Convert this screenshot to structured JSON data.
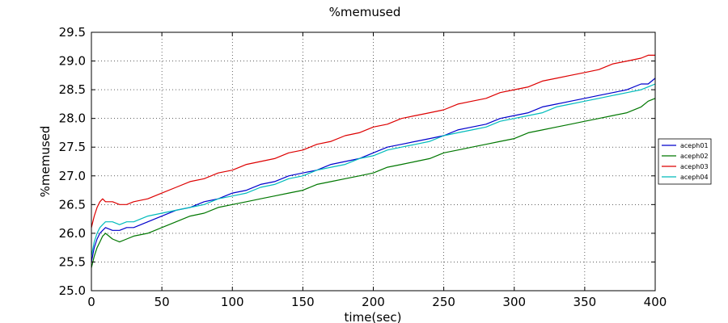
{
  "chart_data": {
    "type": "line",
    "title": "%memused",
    "xlabel": "time(sec)",
    "ylabel": "%memused",
    "xlim": [
      0,
      400
    ],
    "ylim": [
      25.0,
      29.5
    ],
    "xticks": [
      0,
      50,
      100,
      150,
      200,
      250,
      300,
      350,
      400
    ],
    "xtick_labels": [
      "0",
      "50",
      "100",
      "150",
      "200",
      "250",
      "300",
      "350",
      "400"
    ],
    "yticks": [
      25.0,
      25.5,
      26.0,
      26.5,
      27.0,
      27.5,
      28.0,
      28.5,
      29.0,
      29.5
    ],
    "ytick_labels": [
      "25.0",
      "25.5",
      "26.0",
      "26.5",
      "27.0",
      "27.5",
      "28.0",
      "28.5",
      "29.0",
      "29.5"
    ],
    "grid": true,
    "legend_position": "right",
    "series": [
      {
        "name": "aceph01",
        "color": "#0000cc",
        "x": [
          0,
          2,
          4,
          6,
          8,
          10,
          15,
          20,
          25,
          30,
          40,
          50,
          60,
          70,
          80,
          90,
          100,
          110,
          120,
          130,
          140,
          150,
          160,
          170,
          180,
          190,
          200,
          210,
          220,
          230,
          240,
          250,
          260,
          270,
          280,
          290,
          300,
          310,
          320,
          330,
          340,
          350,
          360,
          370,
          380,
          390,
          395,
          400
        ],
        "y": [
          25.5,
          25.75,
          25.9,
          26.0,
          26.05,
          26.1,
          26.05,
          26.05,
          26.1,
          26.1,
          26.2,
          26.3,
          26.4,
          26.45,
          26.55,
          26.6,
          26.7,
          26.75,
          26.85,
          26.9,
          27.0,
          27.05,
          27.1,
          27.2,
          27.25,
          27.3,
          27.4,
          27.5,
          27.55,
          27.6,
          27.65,
          27.7,
          27.8,
          27.85,
          27.9,
          28.0,
          28.05,
          28.1,
          28.2,
          28.25,
          28.3,
          28.35,
          28.4,
          28.45,
          28.5,
          28.6,
          28.6,
          28.7
        ]
      },
      {
        "name": "aceph02",
        "color": "#007700",
        "x": [
          0,
          2,
          4,
          6,
          8,
          10,
          15,
          20,
          25,
          30,
          40,
          50,
          60,
          70,
          80,
          90,
          100,
          110,
          120,
          130,
          140,
          150,
          160,
          170,
          180,
          190,
          200,
          210,
          220,
          230,
          240,
          250,
          260,
          270,
          280,
          290,
          300,
          310,
          320,
          330,
          340,
          350,
          360,
          370,
          380,
          390,
          395,
          400
        ],
        "y": [
          25.4,
          25.6,
          25.75,
          25.85,
          25.95,
          26.0,
          25.9,
          25.85,
          25.9,
          25.95,
          26.0,
          26.1,
          26.2,
          26.3,
          26.35,
          26.45,
          26.5,
          26.55,
          26.6,
          26.65,
          26.7,
          26.75,
          26.85,
          26.9,
          26.95,
          27.0,
          27.05,
          27.15,
          27.2,
          27.25,
          27.3,
          27.4,
          27.45,
          27.5,
          27.55,
          27.6,
          27.65,
          27.75,
          27.8,
          27.85,
          27.9,
          27.95,
          28.0,
          28.05,
          28.1,
          28.2,
          28.3,
          28.35
        ]
      },
      {
        "name": "aceph03",
        "color": "#dd0000",
        "x": [
          0,
          2,
          4,
          6,
          8,
          10,
          15,
          20,
          25,
          30,
          40,
          50,
          60,
          70,
          80,
          90,
          100,
          110,
          120,
          130,
          140,
          150,
          160,
          170,
          180,
          190,
          200,
          210,
          220,
          230,
          240,
          250,
          260,
          270,
          280,
          290,
          300,
          310,
          320,
          330,
          340,
          350,
          360,
          370,
          380,
          390,
          395,
          400
        ],
        "y": [
          26.1,
          26.3,
          26.45,
          26.55,
          26.6,
          26.55,
          26.55,
          26.5,
          26.5,
          26.55,
          26.6,
          26.7,
          26.8,
          26.9,
          26.95,
          27.05,
          27.1,
          27.2,
          27.25,
          27.3,
          27.4,
          27.45,
          27.55,
          27.6,
          27.7,
          27.75,
          27.85,
          27.9,
          28.0,
          28.05,
          28.1,
          28.15,
          28.25,
          28.3,
          28.35,
          28.45,
          28.5,
          28.55,
          28.65,
          28.7,
          28.75,
          28.8,
          28.85,
          28.95,
          29.0,
          29.05,
          29.1,
          29.1
        ]
      },
      {
        "name": "aceph04",
        "color": "#00bbbb",
        "x": [
          0,
          2,
          4,
          6,
          8,
          10,
          15,
          20,
          25,
          30,
          40,
          50,
          60,
          70,
          80,
          90,
          100,
          110,
          120,
          130,
          140,
          150,
          160,
          170,
          180,
          190,
          200,
          210,
          220,
          230,
          240,
          250,
          260,
          270,
          280,
          290,
          300,
          310,
          320,
          330,
          340,
          350,
          360,
          370,
          380,
          390,
          395,
          400
        ],
        "y": [
          25.6,
          25.85,
          26.0,
          26.1,
          26.15,
          26.2,
          26.2,
          26.15,
          26.2,
          26.2,
          26.3,
          26.35,
          26.4,
          26.45,
          26.5,
          26.6,
          26.65,
          26.7,
          26.8,
          26.85,
          26.95,
          27.0,
          27.1,
          27.15,
          27.2,
          27.3,
          27.35,
          27.45,
          27.5,
          27.55,
          27.6,
          27.7,
          27.75,
          27.8,
          27.85,
          27.95,
          28.0,
          28.05,
          28.1,
          28.2,
          28.25,
          28.3,
          28.35,
          28.4,
          28.45,
          28.5,
          28.55,
          28.6
        ]
      }
    ]
  }
}
